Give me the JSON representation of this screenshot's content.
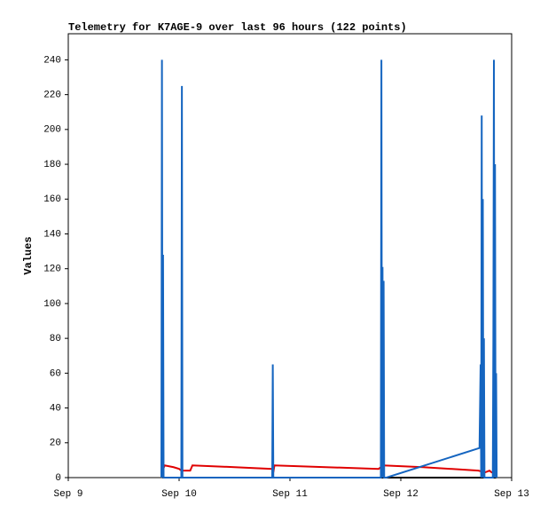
{
  "chart_data": {
    "type": "line",
    "title": "Telemetry for K7AGE-9 over last 96 hours (122 points)",
    "y_label": "Values",
    "xlim": [
      0,
      4
    ],
    "xticks": [
      {
        "value": 0,
        "label": "Sep 9"
      },
      {
        "value": 1,
        "label": "Sep 10"
      },
      {
        "value": 2,
        "label": "Sep 11"
      },
      {
        "value": 3,
        "label": "Sep 12"
      },
      {
        "value": 4,
        "label": "Sep 13"
      }
    ],
    "ylim": [
      0,
      255
    ],
    "yticks": [
      0,
      20,
      40,
      60,
      80,
      100,
      120,
      140,
      160,
      180,
      200,
      220,
      240
    ],
    "series": [
      {
        "color": "#000000",
        "x": [
          0.85,
          3.86
        ],
        "values": [
          0,
          0
        ]
      },
      {
        "color": "#e00000",
        "x": [
          0.85,
          0.87,
          0.95,
          1.0,
          1.02,
          1.1,
          1.12,
          1.5,
          1.84,
          1.85,
          1.86,
          2.8,
          2.84,
          3.2,
          3.7,
          3.76,
          3.8,
          3.82,
          3.86
        ],
        "values": [
          4,
          7,
          6,
          5,
          4,
          4,
          7,
          6,
          5,
          3,
          7,
          5,
          7,
          6,
          4,
          3,
          4,
          3,
          4
        ]
      },
      {
        "color": "#1565c0",
        "x": [
          0.84,
          0.845,
          0.85,
          0.855,
          0.86,
          1.02,
          1.025,
          1.03,
          1.84,
          1.845,
          1.85,
          2.82,
          2.825,
          2.83,
          2.835,
          2.84,
          2.845,
          2.85,
          2.87,
          3.71,
          3.72,
          3.725,
          3.73,
          3.735,
          3.74,
          3.745,
          3.75,
          3.755,
          3.83,
          3.835,
          3.84,
          3.845,
          3.85,
          3.855,
          3.86,
          3.865
        ],
        "values": [
          0,
          240,
          0,
          128,
          0,
          0,
          225,
          0,
          0,
          65,
          0,
          0,
          240,
          0,
          121,
          0,
          113,
          0,
          0,
          17,
          65,
          0,
          208,
          0,
          160,
          0,
          80,
          0,
          0,
          80,
          240,
          0,
          180,
          0,
          60,
          0
        ]
      }
    ]
  }
}
